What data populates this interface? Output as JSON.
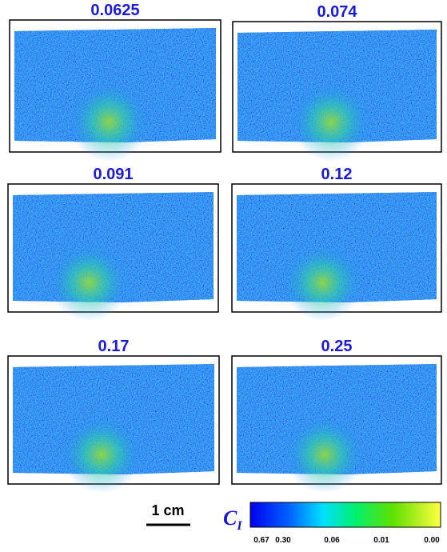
{
  "panels": [
    {
      "title": "0.0625"
    },
    {
      "title": "0.074"
    },
    {
      "title": "0.091"
    },
    {
      "title": "0.12"
    },
    {
      "title": "0.17"
    },
    {
      "title": "0.25"
    }
  ],
  "scale_bar": "1 cm",
  "colorbar": {
    "label": "C",
    "subscript": "I",
    "ticks": [
      "0.67",
      "0.30",
      "0.06",
      "0.01",
      "0.00"
    ]
  }
}
